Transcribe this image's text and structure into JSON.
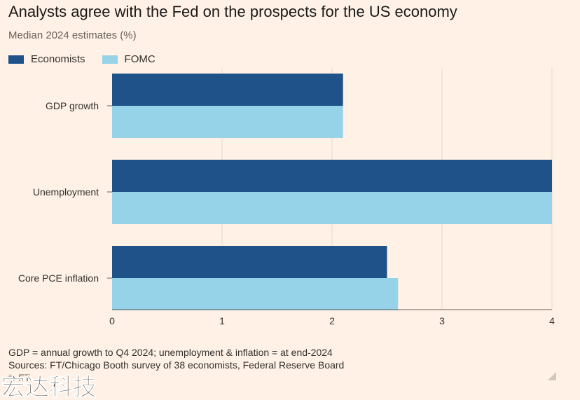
{
  "title": "Analysts agree with the Fed on the prospects for the US economy",
  "subtitle": "Median 2024 estimates (%)",
  "footer": {
    "note": "GDP = annual growth to Q4 2024; unemployment & inflation = at end-2024",
    "sources": "Sources: FT/Chicago Booth survey of 38 economists, Federal Reserve Board",
    "copyright": "© FT"
  },
  "watermark_text": "宏达科技",
  "chart_data": {
    "type": "bar",
    "orientation": "horizontal",
    "categories": [
      "GDP growth",
      "Unemployment",
      "Core PCE inflation"
    ],
    "series": [
      {
        "name": "Economists",
        "color": "#1F5289",
        "values": [
          2.1,
          4.0,
          2.5
        ]
      },
      {
        "name": "FOMC",
        "color": "#96D2E8",
        "values": [
          2.1,
          4.0,
          2.6
        ]
      }
    ],
    "xlim": [
      0,
      4
    ],
    "xticks": [
      0,
      1,
      2,
      3,
      4
    ],
    "grid": true,
    "legend": "top-left"
  }
}
